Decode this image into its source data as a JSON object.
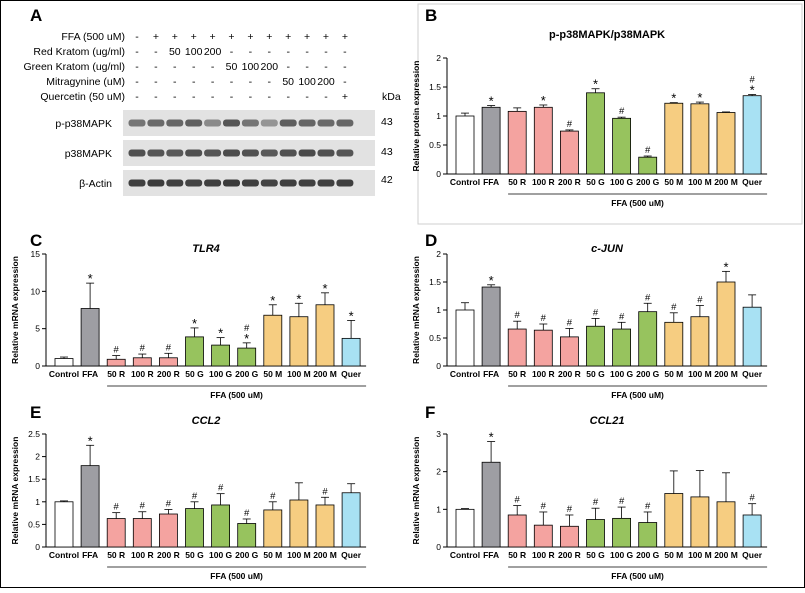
{
  "panel_letters": [
    "A",
    "B",
    "C",
    "D",
    "E",
    "F"
  ],
  "western_blot": {
    "rows": [
      {
        "label": "FFA (500 uM)",
        "values": [
          "-",
          "+",
          "+",
          "+",
          "+",
          "+",
          "+",
          "+",
          "+",
          "+",
          "+",
          "+"
        ]
      },
      {
        "label": "Red Kratom (ug/ml)",
        "values": [
          "-",
          "-",
          "50",
          "100",
          "200",
          "-",
          "-",
          "-",
          "-",
          "-",
          "-",
          "-"
        ]
      },
      {
        "label": "Green Kratom (ug/ml)",
        "values": [
          "-",
          "-",
          "-",
          "-",
          "-",
          "50",
          "100",
          "200",
          "-",
          "-",
          "-",
          "-"
        ]
      },
      {
        "label": "Mitragynine (uM)",
        "values": [
          "-",
          "-",
          "-",
          "-",
          "-",
          "-",
          "-",
          "-",
          "50",
          "100",
          "200",
          "-"
        ]
      },
      {
        "label": "Quercetin (50 uM)",
        "values": [
          "-",
          "-",
          "-",
          "-",
          "-",
          "-",
          "-",
          "-",
          "-",
          "-",
          "-",
          "+"
        ]
      }
    ],
    "kda_label": "kDa",
    "bands": [
      {
        "name": "p-p38MAPK",
        "kda": "43",
        "intensity": [
          0.55,
          0.6,
          0.62,
          0.65,
          0.45,
          0.7,
          0.55,
          0.4,
          0.65,
          0.62,
          0.6,
          0.62
        ]
      },
      {
        "name": "p38MAPK",
        "kda": "43",
        "intensity": [
          0.72,
          0.7,
          0.68,
          0.72,
          0.7,
          0.74,
          0.72,
          0.68,
          0.72,
          0.75,
          0.72,
          0.7
        ]
      },
      {
        "name": "β-Actin",
        "kda": "42",
        "intensity": [
          0.8,
          0.82,
          0.8,
          0.78,
          0.8,
          0.82,
          0.8,
          0.78,
          0.8,
          0.8,
          0.8,
          0.8
        ]
      }
    ]
  },
  "group_colors": [
    "#ffffff",
    "#9e9ea3",
    "#f4a3a0",
    "#f4a3a0",
    "#f4a3a0",
    "#97c35e",
    "#97c35e",
    "#97c35e",
    "#f6cd81",
    "#f6cd81",
    "#f6cd81",
    "#a8e1f3"
  ],
  "chart_data": [
    {
      "panel": "B",
      "type": "bar",
      "title": "p-p38MAPK/p38MAPK",
      "ylabel": "Relative protein expression",
      "ylim": [
        0,
        2.0
      ],
      "yticks": [
        0,
        0.5,
        1.0,
        1.5,
        2.0
      ],
      "categories": [
        "Control",
        "FFA",
        "50 R",
        "100 R",
        "200 R",
        "50 G",
        "100 G",
        "200 G",
        "50 M",
        "100 M",
        "200 M",
        "Quer"
      ],
      "values": [
        1.0,
        1.15,
        1.08,
        1.15,
        0.74,
        1.4,
        0.96,
        0.29,
        1.22,
        1.21,
        1.06,
        1.35
      ],
      "errors": [
        0.05,
        0.03,
        0.06,
        0.04,
        0.02,
        0.07,
        0.02,
        0.02,
        0.01,
        0.03,
        0.01,
        0.02
      ],
      "annotations": [
        "",
        "*",
        "",
        "*",
        "#",
        "*",
        "#",
        "#",
        "*",
        "*",
        "",
        "#\n*"
      ],
      "group_label": "FFA (500 uM)"
    },
    {
      "panel": "C",
      "type": "bar",
      "title": "TLR4",
      "ylabel": "Relative mRNA expression",
      "ylim": [
        0,
        15
      ],
      "yticks": [
        0,
        5,
        10,
        15
      ],
      "categories": [
        "Control",
        "FFA",
        "50 R",
        "100 R",
        "200 R",
        "50 G",
        "100 G",
        "200 G",
        "50 M",
        "100 M",
        "200 M",
        "Quer"
      ],
      "values": [
        1.0,
        7.7,
        0.9,
        1.1,
        1.1,
        3.9,
        2.8,
        2.4,
        6.8,
        6.6,
        8.2,
        3.7
      ],
      "errors": [
        0.2,
        3.4,
        0.5,
        0.5,
        0.6,
        1.2,
        1.0,
        0.7,
        1.4,
        1.8,
        1.6,
        2.4
      ],
      "annotations": [
        "",
        "*",
        "#",
        "#",
        "#",
        "*",
        "*",
        "#\n*",
        "*",
        "*",
        "*",
        "*"
      ],
      "group_label": "FFA (500 uM)"
    },
    {
      "panel": "D",
      "type": "bar",
      "title": "c-JUN",
      "ylabel": "Relative mRNA expression",
      "ylim": [
        0,
        2.0
      ],
      "yticks": [
        0,
        0.5,
        1.0,
        1.5,
        2.0
      ],
      "categories": [
        "Control",
        "FFA",
        "50 R",
        "100 R",
        "200 R",
        "50 G",
        "100 G",
        "200 G",
        "50 M",
        "100 M",
        "200 M",
        "Quer"
      ],
      "values": [
        1.0,
        1.41,
        0.66,
        0.64,
        0.52,
        0.71,
        0.66,
        0.97,
        0.78,
        0.88,
        1.5,
        1.05
      ],
      "errors": [
        0.13,
        0.04,
        0.14,
        0.11,
        0.15,
        0.14,
        0.12,
        0.15,
        0.17,
        0.2,
        0.19,
        0.22
      ],
      "annotations": [
        "",
        "*",
        "#",
        "#",
        "#",
        "#",
        "#",
        "#",
        "#",
        "#",
        "*",
        ""
      ],
      "group_label": "FFA (500 uM)"
    },
    {
      "panel": "E",
      "type": "bar",
      "title": "CCL2",
      "ylabel": "Relative mRNA expression",
      "ylim": [
        0,
        2.5
      ],
      "yticks": [
        0,
        0.5,
        1.0,
        1.5,
        2.0,
        2.5
      ],
      "categories": [
        "Control",
        "FFA",
        "50 R",
        "100 R",
        "200 R",
        "50 G",
        "100 G",
        "200 G",
        "50 M",
        "100 M",
        "200 M",
        "Quer"
      ],
      "values": [
        1.0,
        1.8,
        0.63,
        0.63,
        0.73,
        0.85,
        0.93,
        0.52,
        0.82,
        1.04,
        0.93,
        1.2
      ],
      "errors": [
        0.02,
        0.45,
        0.13,
        0.15,
        0.1,
        0.15,
        0.25,
        0.1,
        0.18,
        0.38,
        0.17,
        0.2
      ],
      "annotations": [
        "",
        "*",
        "#",
        "#",
        "#",
        "#",
        "#",
        "#",
        "#",
        "",
        "#",
        ""
      ],
      "group_label": "FFA (500 uM)"
    },
    {
      "panel": "F",
      "type": "bar",
      "title": "CCL21",
      "ylabel": "Relative mRNA expression",
      "ylim": [
        0,
        3
      ],
      "yticks": [
        0,
        1,
        2,
        3
      ],
      "categories": [
        "Control",
        "FFA",
        "50 R",
        "100 R",
        "200 R",
        "50 G",
        "100 G",
        "200 G",
        "50 M",
        "100 M",
        "200 M",
        "Quer"
      ],
      "values": [
        1.0,
        2.25,
        0.85,
        0.58,
        0.55,
        0.73,
        0.76,
        0.65,
        1.42,
        1.33,
        1.2,
        0.85
      ],
      "errors": [
        0.02,
        0.55,
        0.25,
        0.35,
        0.3,
        0.3,
        0.3,
        0.28,
        0.6,
        0.7,
        0.77,
        0.3
      ],
      "annotations": [
        "",
        "*",
        "#",
        "#",
        "#",
        "#",
        "#",
        "#",
        "",
        "",
        "",
        "#"
      ],
      "group_label": "FFA (500 uM)"
    }
  ]
}
